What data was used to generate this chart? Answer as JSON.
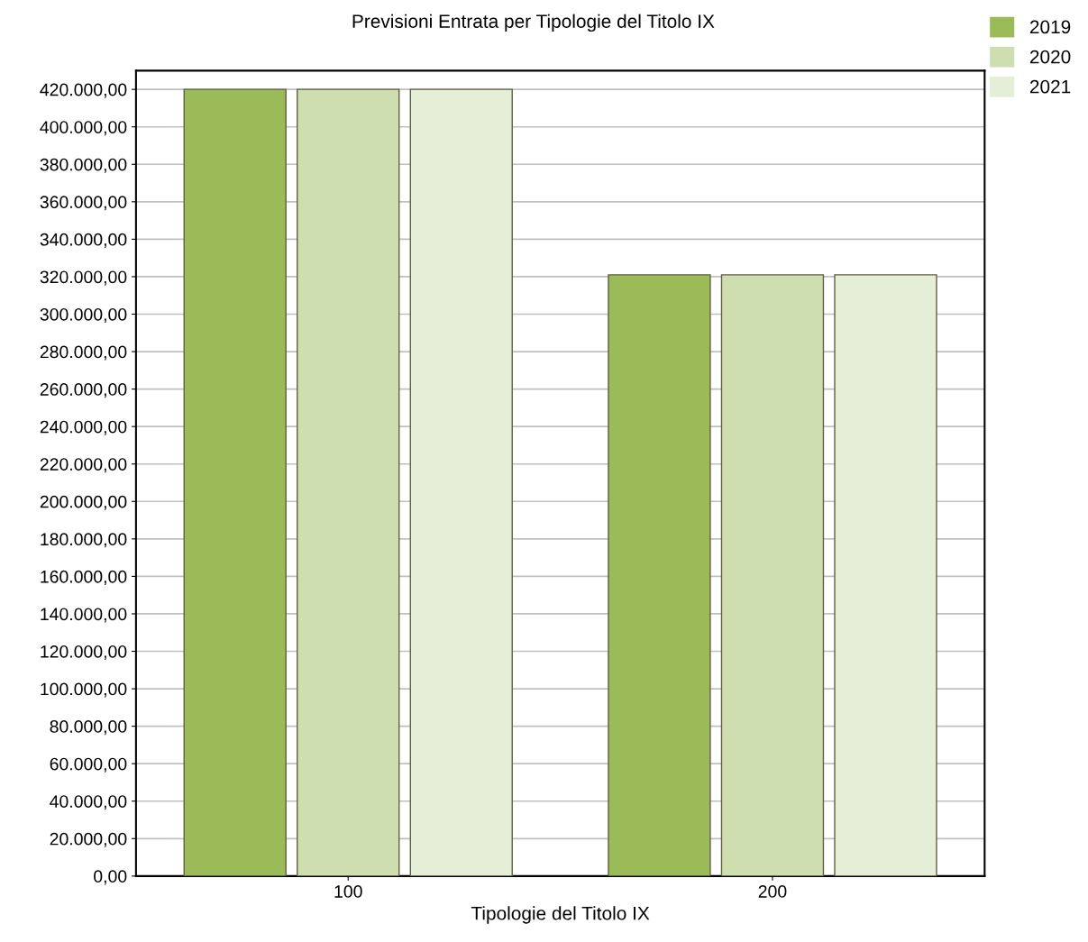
{
  "chart_data": {
    "type": "bar",
    "title": "Previsioni Entrata per Tipologie del Titolo IX",
    "xlabel": "Tipologie del Titolo IX",
    "categories": [
      "100",
      "200"
    ],
    "series": [
      {
        "name": "2019",
        "color": "#9bbb59",
        "values": [
          420000,
          321000
        ]
      },
      {
        "name": "2020",
        "color": "#cfdeb0",
        "values": [
          420000,
          321000
        ]
      },
      {
        "name": "2021",
        "color": "#e5eed6",
        "values": [
          420000,
          321000
        ]
      }
    ],
    "ylim": [
      0,
      430000
    ],
    "yticks": [
      {
        "value": 0,
        "label": "0,00"
      },
      {
        "value": 20000,
        "label": "20.000,00"
      },
      {
        "value": 40000,
        "label": "40.000,00"
      },
      {
        "value": 60000,
        "label": "60.000,00"
      },
      {
        "value": 80000,
        "label": "80.000,00"
      },
      {
        "value": 100000,
        "label": "100.000,00"
      },
      {
        "value": 120000,
        "label": "120.000,00"
      },
      {
        "value": 140000,
        "label": "140.000,00"
      },
      {
        "value": 160000,
        "label": "160.000,00"
      },
      {
        "value": 180000,
        "label": "180.000,00"
      },
      {
        "value": 200000,
        "label": "200.000,00"
      },
      {
        "value": 220000,
        "label": "220.000,00"
      },
      {
        "value": 240000,
        "label": "240.000,00"
      },
      {
        "value": 260000,
        "label": "260.000,00"
      },
      {
        "value": 280000,
        "label": "280.000,00"
      },
      {
        "value": 300000,
        "label": "300.000,00"
      },
      {
        "value": 320000,
        "label": "320.000,00"
      },
      {
        "value": 340000,
        "label": "340.000,00"
      },
      {
        "value": 360000,
        "label": "360.000,00"
      },
      {
        "value": 380000,
        "label": "380.000,00"
      },
      {
        "value": 400000,
        "label": "400.000,00"
      },
      {
        "value": 420000,
        "label": "420.000,00"
      }
    ],
    "grid": "y",
    "legend": "top right"
  }
}
